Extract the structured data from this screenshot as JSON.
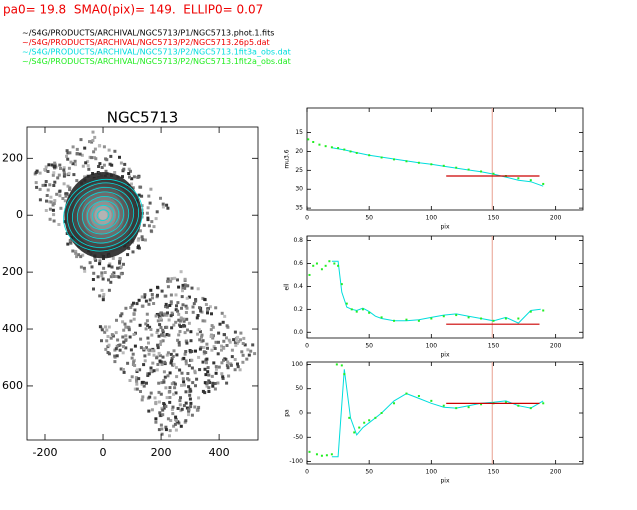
{
  "header": {
    "title": "pa0= 19.8  SMA0(pix)= 149.  ELLIP0= 0.07",
    "files": [
      {
        "text": "~/S4G/PRODUCTS/ARCHIVAL/NGC5713/P1/NGC5713.phot.1.fits",
        "color": "#000000"
      },
      {
        "text": "~/S4G/PRODUCTS/ARCHIVAL/NGC5713/P2/NGC5713.26p5.dat",
        "color": "#ee0000"
      },
      {
        "text": "~/S4G/PRODUCTS/ARCHIVAL/NGC5713/P2/NGC5713.1fit3a_obs.dat",
        "color": "#00dddd"
      },
      {
        "text": "~/S4G/PRODUCTS/ARCHIVAL/NGC5713/P2/NGC5713.1fit2a_obs.dat",
        "color": "#22ee22"
      }
    ]
  },
  "chart_data": [
    {
      "type": "image",
      "title": "NGC5713",
      "xlim": [
        -262,
        534
      ],
      "ylim": [
        -790,
        310
      ],
      "xticks": [
        -200,
        0,
        200,
        400
      ],
      "yticks": [
        200,
        0,
        {
          "value": -200,
          "label": "200"
        },
        {
          "value": -400,
          "label": "400"
        },
        {
          "value": -600,
          "label": "600"
        }
      ]
    },
    {
      "type": "profile",
      "xlabel": "pix",
      "ylabel": "mu3.6",
      "xlim": [
        0,
        222
      ],
      "ylim": [
        35.5,
        8.5
      ],
      "xticks": [
        0,
        50,
        100,
        150,
        200
      ],
      "yticks": [
        15,
        20,
        25,
        30,
        35
      ],
      "vline": 149,
      "vline_color": "#e8a090",
      "points": {
        "color": "#22ee22",
        "x": [
          1,
          5,
          10,
          15,
          20,
          25,
          30,
          35,
          40,
          50,
          60,
          70,
          80,
          90,
          100,
          110,
          120,
          130,
          140,
          150,
          160,
          170,
          180,
          190
        ],
        "y": [
          16.8,
          17.5,
          18.2,
          18.6,
          18.9,
          19.1,
          19.5,
          20.0,
          20.4,
          21.0,
          21.6,
          22.1,
          22.6,
          23.0,
          23.4,
          23.8,
          24.3,
          24.8,
          25.3,
          25.9,
          26.5,
          27.1,
          27.6,
          28.6
        ]
      },
      "profile": {
        "color": "#00dddd",
        "x": [
          20,
          30,
          40,
          50,
          60,
          70,
          80,
          90,
          100,
          110,
          120,
          130,
          140,
          150,
          160,
          170,
          180,
          190
        ],
        "y": [
          19.0,
          19.6,
          20.3,
          21.0,
          21.5,
          22.0,
          22.5,
          23.0,
          23.4,
          23.9,
          24.4,
          24.9,
          25.4,
          26.0,
          26.8,
          27.6,
          28.0,
          29.2
        ]
      },
      "reference": {
        "color": "#cc0000",
        "x": [
          112,
          187
        ],
        "y": [
          26.5,
          26.5
        ]
      }
    },
    {
      "type": "profile",
      "xlabel": "pix",
      "ylabel": "ell",
      "xlim": [
        0,
        222
      ],
      "ylim": [
        -0.05,
        0.84
      ],
      "xticks": [
        0,
        50,
        100,
        150,
        200
      ],
      "yticks": [
        {
          "value": 0,
          "label": "0.0"
        },
        0.2,
        0.4,
        0.6,
        0.8
      ],
      "vline": 149,
      "vline_color": "#e8a090",
      "points": {
        "color": "#22ee22",
        "x": [
          2,
          5,
          8,
          12,
          15,
          18,
          22,
          25,
          28,
          32,
          36,
          40,
          45,
          50,
          60,
          70,
          80,
          90,
          100,
          110,
          120,
          130,
          140,
          150,
          160,
          170,
          180,
          190
        ],
        "y": [
          0.5,
          0.58,
          0.6,
          0.55,
          0.58,
          0.62,
          0.6,
          0.58,
          0.42,
          0.25,
          0.2,
          0.18,
          0.2,
          0.17,
          0.13,
          0.1,
          0.11,
          0.1,
          0.12,
          0.14,
          0.15,
          0.13,
          0.12,
          0.1,
          0.12,
          0.12,
          0.18,
          0.19
        ]
      },
      "profile": {
        "color": "#00dddd",
        "x": [
          20,
          25,
          28,
          32,
          36,
          40,
          45,
          50,
          55,
          60,
          70,
          80,
          90,
          100,
          110,
          120,
          130,
          140,
          150,
          160,
          170,
          180,
          188
        ],
        "y": [
          0.62,
          0.62,
          0.35,
          0.22,
          0.2,
          0.19,
          0.21,
          0.18,
          0.14,
          0.12,
          0.1,
          0.1,
          0.11,
          0.13,
          0.15,
          0.16,
          0.14,
          0.12,
          0.1,
          0.13,
          0.08,
          0.19,
          0.2
        ]
      },
      "reference": {
        "color": "#cc0000",
        "x": [
          112,
          187
        ],
        "y": [
          0.07,
          0.07
        ]
      }
    },
    {
      "type": "profile",
      "xlabel": "pix",
      "ylabel": "pa",
      "xlim": [
        0,
        222
      ],
      "ylim": [
        -105,
        105
      ],
      "xticks": [
        0,
        50,
        100,
        150,
        200
      ],
      "yticks": [
        -100,
        -50,
        0,
        50,
        100
      ],
      "vline": 149,
      "vline_color": "#e8a090",
      "points": {
        "color": "#22ee22",
        "x": [
          2,
          8,
          12,
          16,
          20,
          24,
          28,
          30,
          34,
          38,
          42,
          46,
          50,
          55,
          60,
          70,
          80,
          90,
          100,
          110,
          120,
          130,
          140,
          150,
          160,
          170,
          180,
          190
        ],
        "y": [
          -80,
          -85,
          -88,
          -87,
          -85,
          100,
          98,
          80,
          -10,
          -40,
          -30,
          -20,
          -15,
          -10,
          0,
          20,
          40,
          35,
          25,
          15,
          10,
          12,
          18,
          20,
          22,
          15,
          10,
          20
        ]
      },
      "profile": {
        "color": "#00dddd",
        "x": [
          20,
          25,
          30,
          35,
          40,
          45,
          50,
          55,
          60,
          70,
          80,
          90,
          100,
          110,
          120,
          130,
          140,
          150,
          160,
          170,
          180,
          190
        ],
        "y": [
          -90,
          -90,
          90,
          -10,
          -45,
          -30,
          -20,
          -10,
          0,
          25,
          40,
          30,
          20,
          12,
          10,
          15,
          20,
          22,
          25,
          15,
          10,
          25
        ]
      },
      "reference": {
        "color": "#cc0000",
        "x": [
          112,
          187
        ],
        "y": [
          19.8,
          19.8
        ]
      }
    }
  ]
}
